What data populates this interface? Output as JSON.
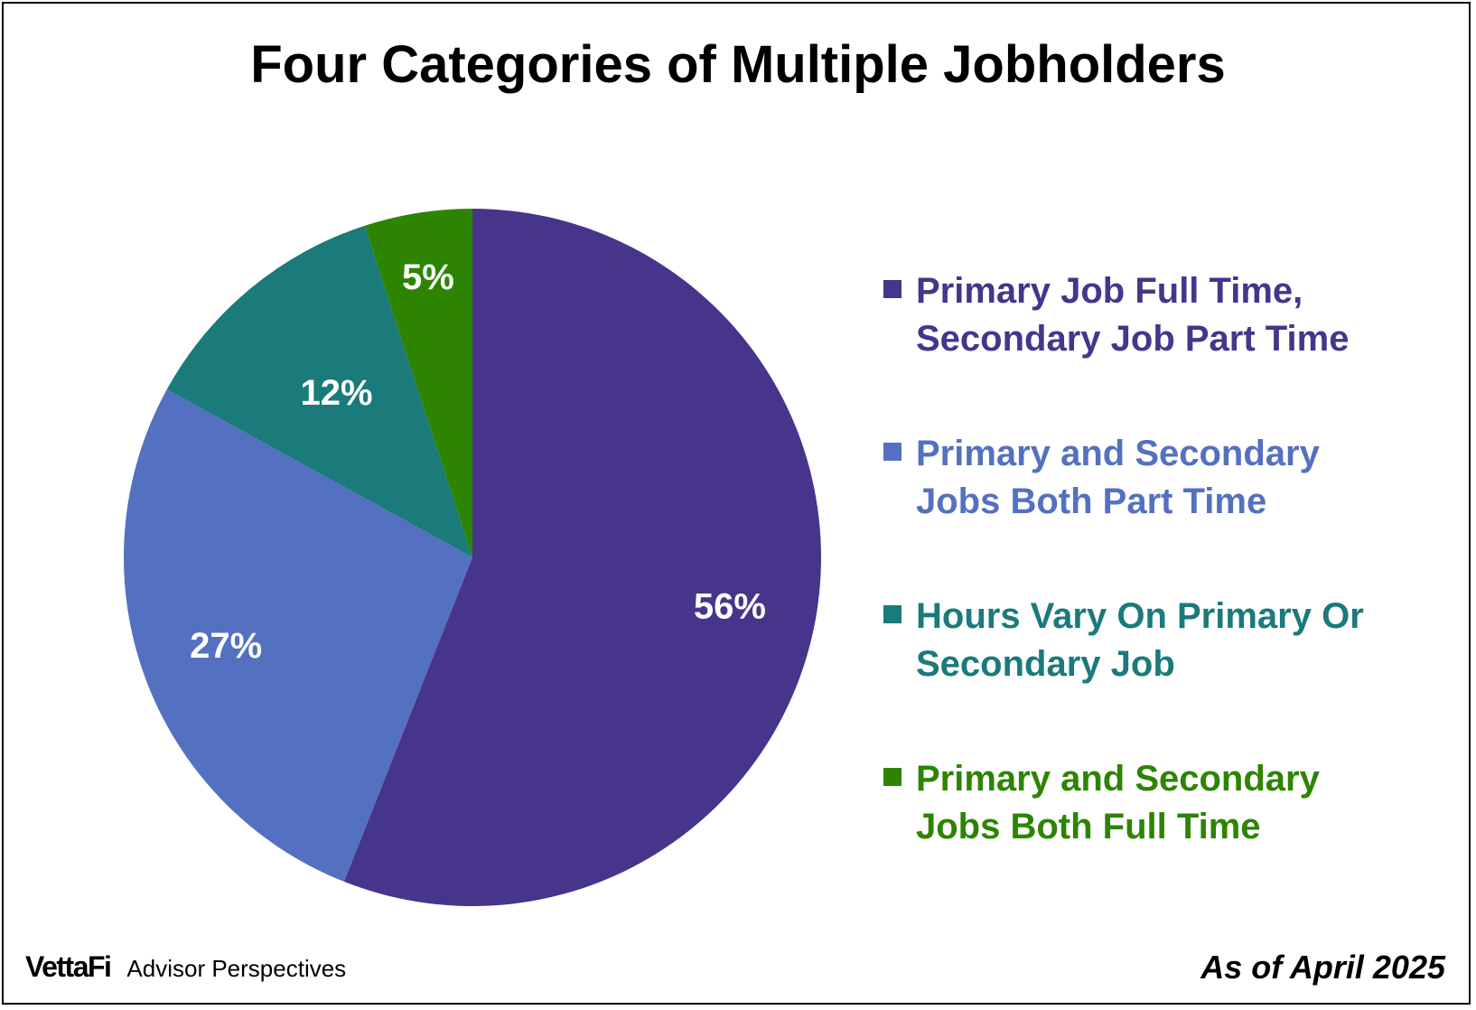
{
  "chart_data": {
    "type": "pie",
    "title": "Four Categories of Multiple Jobholders",
    "slices": [
      {
        "label": "Primary Job Full Time, Secondary Job Part Time",
        "legend_lines": "Primary Job Full Time,\nSecondary Job Part Time",
        "value": 56,
        "value_label": "56%",
        "color": "#46358A"
      },
      {
        "label": "Primary and Secondary Jobs Both Part Time",
        "legend_lines": "Primary and Secondary\nJobs Both Part Time",
        "value": 27,
        "value_label": "27%",
        "color": "#5470C0"
      },
      {
        "label": "Hours Vary On Primary Or Secondary Job",
        "legend_lines": "Hours Vary On Primary Or\nSecondary Job",
        "value": 12,
        "value_label": "12%",
        "color": "#1B7A7A"
      },
      {
        "label": "Primary and Secondary Jobs Both Full Time",
        "legend_lines": "Primary and Secondary\nJobs Both Full Time",
        "value": 5,
        "value_label": "5%",
        "color": "#2D8400"
      }
    ],
    "start_angle": "12 o'clock",
    "direction": "clockwise",
    "legend_position": "right"
  },
  "footer": {
    "brand": "VettaFi",
    "brand_sub": "Advisor Perspectives",
    "as_of": "As of April 2025"
  }
}
